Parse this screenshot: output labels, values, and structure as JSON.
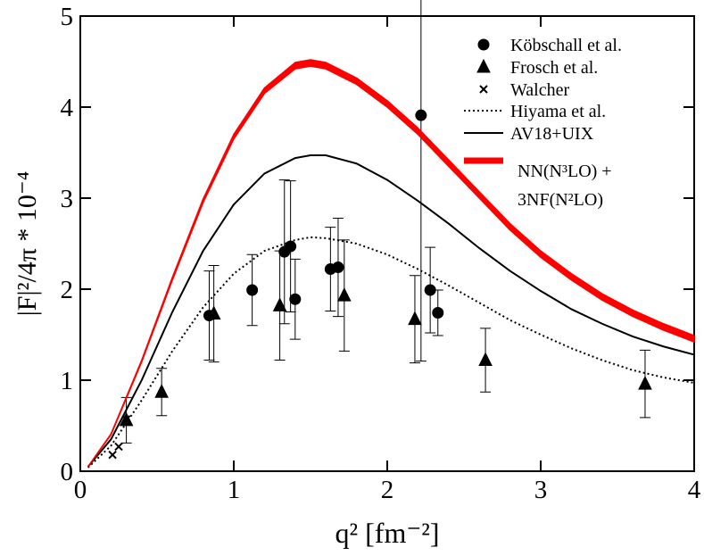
{
  "chart_data": {
    "type": "scatter",
    "x_label": "q² [fm⁻²]",
    "y_label": "|F|²/4π * 10⁻⁴",
    "xlim": [
      0,
      4
    ],
    "xticks": [
      0,
      1,
      2,
      3,
      4
    ],
    "ylim": [
      0,
      5
    ],
    "yticks": [
      0,
      1,
      2,
      3,
      4,
      5
    ],
    "legend": "upper right",
    "series": [
      {
        "name": "Köbschall et al.",
        "marker": "circle",
        "color": "#000000",
        "x": [
          0.84,
          1.12,
          1.33,
          1.37,
          1.4,
          1.63,
          1.68,
          2.22,
          2.28,
          2.33
        ],
        "values": [
          1.71,
          1.99,
          2.41,
          2.47,
          1.89,
          2.22,
          2.24,
          3.91,
          1.99,
          1.74
        ],
        "errors": [
          0.49,
          0.39,
          0.79,
          0.72,
          0.44,
          0.46,
          0.54,
          2.7,
          0.47,
          0.25
        ]
      },
      {
        "name": "Frosch et al.",
        "marker": "triangle",
        "color": "#000000",
        "x": [
          0.3,
          0.53,
          0.87,
          1.3,
          1.72,
          2.18,
          2.64,
          3.68
        ],
        "values": [
          0.56,
          0.87,
          1.73,
          1.82,
          1.93,
          1.67,
          1.22,
          0.96
        ],
        "errors": [
          0.25,
          0.26,
          0.53,
          0.6,
          0.61,
          0.48,
          0.35,
          0.37
        ]
      },
      {
        "name": "Walcher",
        "marker": "cross",
        "color": "#000000",
        "x": [
          0.21,
          0.25,
          0.3
        ],
        "values": [
          0.18,
          0.27,
          0.57
        ]
      },
      {
        "name": "Hiyama et al.",
        "line": "dotted",
        "color": "#000000",
        "x": [
          0.05,
          0.2,
          0.4,
          0.6,
          0.8,
          1.0,
          1.2,
          1.4,
          1.5,
          1.6,
          1.8,
          2.0,
          2.2,
          2.4,
          2.6,
          2.8,
          3.0,
          3.2,
          3.4,
          3.6,
          3.8,
          4.0
        ],
        "values": [
          0.04,
          0.28,
          0.78,
          1.32,
          1.8,
          2.17,
          2.42,
          2.54,
          2.57,
          2.56,
          2.5,
          2.38,
          2.22,
          2.04,
          1.85,
          1.66,
          1.5,
          1.35,
          1.22,
          1.11,
          1.03,
          0.97
        ]
      },
      {
        "name": "AV18+UIX",
        "line": "solid",
        "color": "#000000",
        "x": [
          0.05,
          0.2,
          0.4,
          0.6,
          0.8,
          1.0,
          1.2,
          1.4,
          1.5,
          1.6,
          1.8,
          2.0,
          2.2,
          2.4,
          2.6,
          2.8,
          3.0,
          3.2,
          3.4,
          3.6,
          3.8,
          4.0
        ],
        "values": [
          0.05,
          0.35,
          1.0,
          1.75,
          2.42,
          2.93,
          3.27,
          3.44,
          3.47,
          3.47,
          3.38,
          3.2,
          2.97,
          2.72,
          2.45,
          2.2,
          1.98,
          1.78,
          1.62,
          1.48,
          1.37,
          1.28
        ]
      },
      {
        "name": "NN(N³LO) + 3NF(N²LO)",
        "line": "band",
        "color": "#ff0000",
        "x": [
          0.05,
          0.2,
          0.4,
          0.6,
          0.8,
          1.0,
          1.2,
          1.4,
          1.5,
          1.6,
          1.8,
          2.0,
          2.2,
          2.4,
          2.6,
          2.8,
          3.0,
          3.2,
          3.4,
          3.6,
          3.8,
          4.0
        ],
        "values": [
          0.05,
          0.4,
          1.2,
          2.1,
          2.95,
          3.65,
          4.15,
          4.42,
          4.45,
          4.42,
          4.25,
          4.0,
          3.7,
          3.35,
          3.0,
          2.65,
          2.35,
          2.1,
          1.88,
          1.7,
          1.55,
          1.42
        ],
        "upper": [
          0.05,
          0.41,
          1.22,
          2.13,
          2.99,
          3.7,
          4.21,
          4.49,
          4.52,
          4.49,
          4.32,
          4.07,
          3.77,
          3.42,
          3.07,
          2.72,
          2.42,
          2.17,
          1.95,
          1.77,
          1.62,
          1.49
        ]
      }
    ]
  }
}
